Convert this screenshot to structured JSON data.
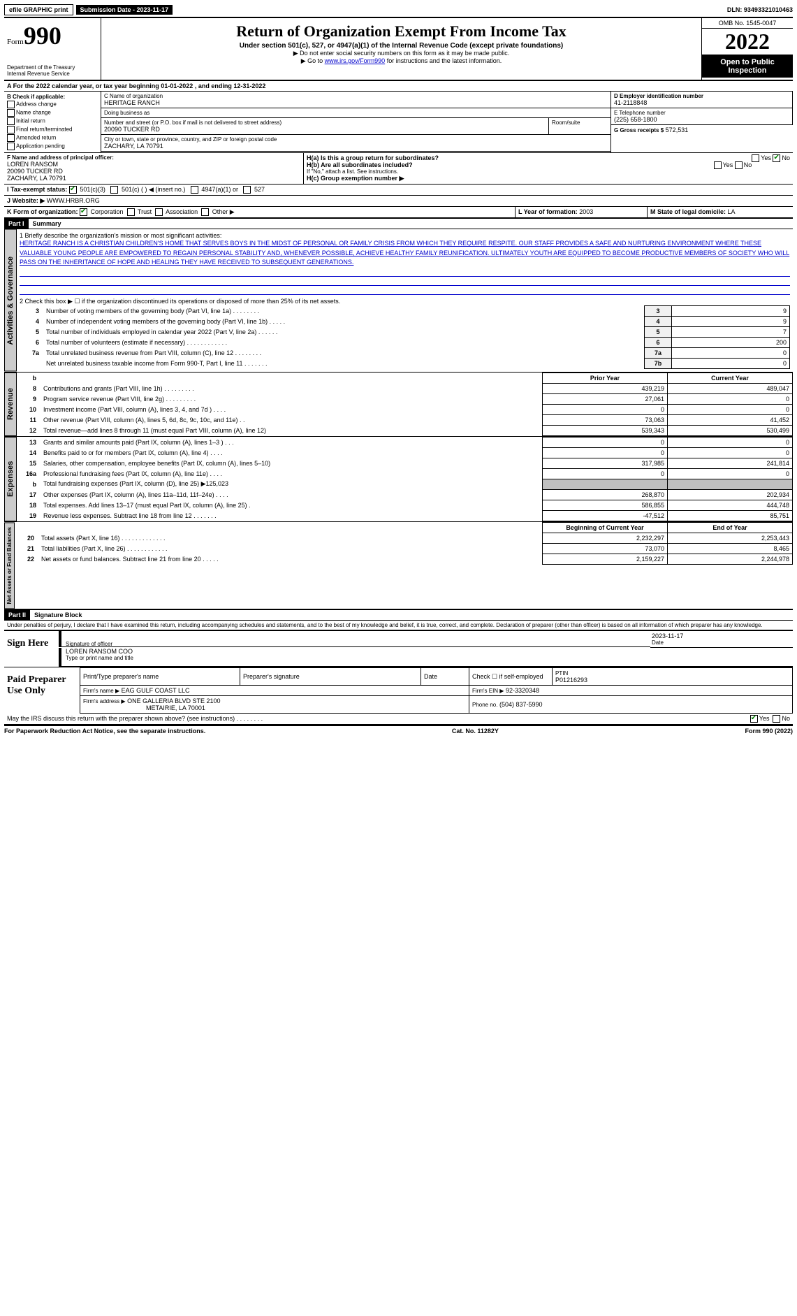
{
  "top": {
    "efile": "efile GRAPHIC print",
    "submission_label": "Submission Date - 2023-11-17",
    "dln": "DLN: 93493321010463"
  },
  "header": {
    "form_prefix": "Form",
    "form_number": "990",
    "dept": "Department of the Treasury",
    "irs": "Internal Revenue Service",
    "title": "Return of Organization Exempt From Income Tax",
    "subtitle": "Under section 501(c), 527, or 4947(a)(1) of the Internal Revenue Code (except private foundations)",
    "instr1": "▶ Do not enter social security numbers on this form as it may be made public.",
    "instr2_pre": "▶ Go to ",
    "instr2_link": "www.irs.gov/Form990",
    "instr2_post": " for instructions and the latest information.",
    "omb": "OMB No. 1545-0047",
    "year": "2022",
    "open": "Open to Public Inspection"
  },
  "section_a": {
    "text_pre": "A For the 2022 calendar year, or tax year beginning ",
    "begin": "01-01-2022",
    "mid": " , and ending ",
    "end": "12-31-2022"
  },
  "section_b": {
    "label": "B Check if applicable:",
    "items": [
      "Address change",
      "Name change",
      "Initial return",
      "Final return/terminated",
      "Amended return",
      "Application pending"
    ]
  },
  "section_c": {
    "name_label": "C Name of organization",
    "name": "HERITAGE RANCH",
    "dba_label": "Doing business as",
    "dba": "",
    "addr_label": "Number and street (or P.O. box if mail is not delivered to street address)",
    "room_label": "Room/suite",
    "addr": "20090 TUCKER RD",
    "city_label": "City or town, state or province, country, and ZIP or foreign postal code",
    "city": "ZACHARY, LA  70791"
  },
  "section_d": {
    "label": "D Employer identification number",
    "value": "41-2118848"
  },
  "section_e": {
    "label": "E Telephone number",
    "value": "(225) 658-1800"
  },
  "section_g": {
    "label": "G Gross receipts $",
    "value": "572,531"
  },
  "section_f": {
    "label": "F  Name and address of principal officer:",
    "name": "LOREN RANSOM",
    "addr1": "20090 TUCKER RD",
    "addr2": "ZACHARY, LA  70791"
  },
  "section_h": {
    "ha_label": "H(a)  Is this a group return for subordinates?",
    "ha_yes": "Yes",
    "ha_no": "No",
    "hb_label": "H(b)  Are all subordinates included?",
    "hb_note": "If \"No,\" attach a list. See instructions.",
    "hc_label": "H(c)  Group exemption number ▶"
  },
  "section_i": {
    "label": "I   Tax-exempt status:",
    "opt1": "501(c)(3)",
    "opt2": "501(c) (   ) ◀ (insert no.)",
    "opt3": "4947(a)(1) or",
    "opt4": "527"
  },
  "section_j": {
    "label": "J   Website: ▶",
    "value": "WWW.HRBR.ORG"
  },
  "section_k": {
    "label": "K Form of organization:",
    "opts": [
      "Corporation",
      "Trust",
      "Association",
      "Other ▶"
    ]
  },
  "section_l": {
    "label": "L Year of formation:",
    "value": "2003"
  },
  "section_m": {
    "label": "M State of legal domicile:",
    "value": "LA"
  },
  "parts": {
    "p1_label": "Part I",
    "p1_title": "Summary",
    "p2_label": "Part II",
    "p2_title": "Signature Block"
  },
  "mission": {
    "lead": "1   Briefly describe the organization's mission or most significant activities:",
    "text": "HERITAGE RANCH IS A CHRISTIAN CHILDREN'S HOME THAT SERVES BOYS IN THE MIDST OF PERSONAL OR FAMILY CRISIS FROM WHICH THEY REQUIRE RESPITE. OUR STAFF PROVIDES A SAFE AND NURTURING ENVIRONMENT WHERE THESE VALUABLE YOUNG PEOPLE ARE EMPOWERED TO REGAIN PERSONAL STABILITY AND, WHENEVER POSSIBLE, ACHIEVE HEALTHY FAMILY REUNIFICATION. ULTIMATELY YOUTH ARE EQUIPPED TO BECOME PRODUCTIVE MEMBERS OF SOCIETY WHO WILL PASS ON THE INHERITANCE OF HOPE AND HEALING THEY HAVE RECEIVED TO SUBSEQUENT GENERATIONS."
  },
  "line2": "2   Check this box ▶ ☐ if the organization discontinued its operations or disposed of more than 25% of its net assets.",
  "gov_rows": [
    {
      "n": "3",
      "desc": "Number of voting members of the governing body (Part VI, line 1a)   .    .    .    .    .    .    .    .",
      "box": "3",
      "val": "9"
    },
    {
      "n": "4",
      "desc": "Number of independent voting members of the governing body (Part VI, line 1b)   .    .    .    .    .",
      "box": "4",
      "val": "9"
    },
    {
      "n": "5",
      "desc": "Total number of individuals employed in calendar year 2022 (Part V, line 2a)   .    .    .    .    .    .",
      "box": "5",
      "val": "7"
    },
    {
      "n": "6",
      "desc": "Total number of volunteers (estimate if necessary)   .    .    .    .    .    .    .    .    .    .    .    .",
      "box": "6",
      "val": "200"
    },
    {
      "n": "7a",
      "desc": "Total unrelated business revenue from Part VIII, column (C), line 12   .    .    .    .    .    .    .    .",
      "box": "7a",
      "val": "0"
    },
    {
      "n": "",
      "desc": "Net unrelated business taxable income from Form 990-T, Part I, line 11   .    .    .    .    .    .    .",
      "box": "7b",
      "val": "0"
    }
  ],
  "two_col_header": {
    "b": "b",
    "prior": "Prior Year",
    "current": "Current Year"
  },
  "revenue_rows": [
    {
      "n": "8",
      "desc": "Contributions and grants (Part VIII, line 1h)   .    .    .    .    .    .    .    .    .",
      "py": "439,219",
      "cy": "489,047"
    },
    {
      "n": "9",
      "desc": "Program service revenue (Part VIII, line 2g)   .    .    .    .    .    .    .    .    .",
      "py": "27,061",
      "cy": "0"
    },
    {
      "n": "10",
      "desc": "Investment income (Part VIII, column (A), lines 3, 4, and 7d )   .    .    .    .",
      "py": "0",
      "cy": "0"
    },
    {
      "n": "11",
      "desc": "Other revenue (Part VIII, column (A), lines 5, 6d, 8c, 9c, 10c, and 11e)   .    .",
      "py": "73,063",
      "cy": "41,452"
    },
    {
      "n": "12",
      "desc": "Total revenue—add lines 8 through 11 (must equal Part VIII, column (A), line 12)",
      "py": "539,343",
      "cy": "530,499"
    }
  ],
  "expense_rows": [
    {
      "n": "13",
      "desc": "Grants and similar amounts paid (Part IX, column (A), lines 1–3 )   .    .    .",
      "py": "0",
      "cy": "0"
    },
    {
      "n": "14",
      "desc": "Benefits paid to or for members (Part IX, column (A), line 4)   .    .    .    .",
      "py": "0",
      "cy": "0"
    },
    {
      "n": "15",
      "desc": "Salaries, other compensation, employee benefits (Part IX, column (A), lines 5–10)",
      "py": "317,985",
      "cy": "241,814"
    },
    {
      "n": "16a",
      "desc": "Professional fundraising fees (Part IX, column (A), line 11e)   .    .    .    .",
      "py": "0",
      "cy": "0"
    },
    {
      "n": "b",
      "desc": "Total fundraising expenses (Part IX, column (D), line 25) ▶125,023",
      "py": "GREY",
      "cy": "GREY"
    },
    {
      "n": "17",
      "desc": "Other expenses (Part IX, column (A), lines 11a–11d, 11f–24e)   .    .    .    .",
      "py": "268,870",
      "cy": "202,934"
    },
    {
      "n": "18",
      "desc": "Total expenses. Add lines 13–17 (must equal Part IX, column (A), line 25)   .",
      "py": "586,855",
      "cy": "444,748"
    },
    {
      "n": "19",
      "desc": "Revenue less expenses. Subtract line 18 from line 12   .    .    .    .    .    .    .",
      "py": "-47,512",
      "cy": "85,751"
    }
  ],
  "net_header": {
    "beg": "Beginning of Current Year",
    "end": "End of Year"
  },
  "net_rows": [
    {
      "n": "20",
      "desc": "Total assets (Part X, line 16)   .    .    .    .    .    .    .    .    .    .    .    .    .",
      "py": "2,232,297",
      "cy": "2,253,443"
    },
    {
      "n": "21",
      "desc": "Total liabilities (Part X, line 26)   .    .    .    .    .    .    .    .    .    .    .    .",
      "py": "73,070",
      "cy": "8,465"
    },
    {
      "n": "22",
      "desc": "Net assets or fund balances. Subtract line 21 from line 20   .    .    .    .    .",
      "py": "2,159,227",
      "cy": "2,244,978"
    }
  ],
  "vtabs": {
    "gov": "Activities & Governance",
    "rev": "Revenue",
    "exp": "Expenses",
    "net": "Net Assets or Fund Balances"
  },
  "perjury": "Under penalties of perjury, I declare that I have examined this return, including accompanying schedules and statements, and to the best of my knowledge and belief, it is true, correct, and complete. Declaration of preparer (other than officer) is based on all information of which preparer has any knowledge.",
  "sign": {
    "here": "Sign Here",
    "sig_officer": "Signature of officer",
    "date_label": "Date",
    "date": "2023-11-17",
    "name": "LOREN RANSOM  COO",
    "name_label": "Type or print name and title"
  },
  "paid": {
    "title": "Paid Preparer Use Only",
    "h1": "Print/Type preparer's name",
    "h2": "Preparer's signature",
    "h3": "Date",
    "h4_pre": "Check ☐ if self-employed",
    "h5": "PTIN",
    "ptin": "P01216293",
    "firm_label": "Firm's name    ▶",
    "firm": "EAG GULF COAST LLC",
    "ein_label": "Firm's EIN ▶",
    "ein": "92-3320348",
    "addr_label": "Firm's address ▶",
    "addr1": "ONE GALLERIA BLVD STE 2100",
    "addr2": "METAIRIE, LA  70001",
    "phone_label": "Phone no.",
    "phone": "(504) 837-5990"
  },
  "discuss": {
    "q": "May the IRS discuss this return with the preparer shown above? (see instructions)    .    .    .    .    .    .    .    .",
    "yes": "Yes",
    "no": "No"
  },
  "footer": {
    "left": "For Paperwork Reduction Act Notice, see the separate instructions.",
    "mid": "Cat. No. 11282Y",
    "right": "Form 990 (2022)"
  }
}
